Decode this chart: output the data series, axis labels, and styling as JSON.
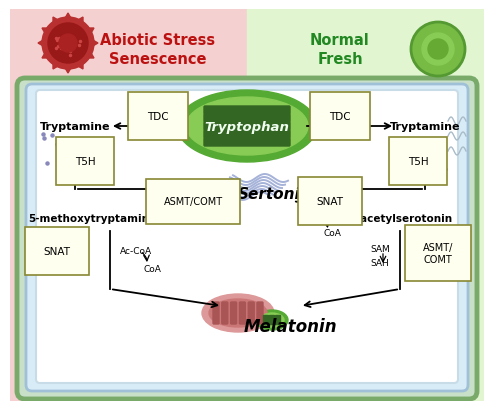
{
  "title_left": "Abiotic Stress\nSenescence",
  "title_right": "Normal\nFresh",
  "title_left_color": "#bb1111",
  "title_right_color": "#228822",
  "bg_left": "#f5d0d0",
  "bg_right": "#e0f5d0",
  "cell_outer_bg": "#c8dfc8",
  "cell_outer_border": "#7aaa6a",
  "cell_inner_bg": "#d8ecf8",
  "cell_inner_border": "#b0c8e0",
  "cell_white_bg": "#f8f8f8",
  "inner_bg": "#ffffff",
  "labels": {
    "tryptophan": "Tryptophan",
    "tryptamine_left": "Tryptamine",
    "tryptamine_right": "Tryptamine",
    "serotonin": "Sertonin",
    "methoxy": "5-methoxytryptamine",
    "nacetyl": "N-acetylserotonin",
    "melatonin": "Melatonin"
  },
  "enzyme_color": "#fffff0",
  "enzyme_edge": "#888833",
  "tryptophan_green1": "#55aa33",
  "tryptophan_green2": "#88cc55",
  "tryptophan_stripe": "#336622",
  "chloro_green1": "#55aa33",
  "chloro_green2": "#88cc55",
  "mito_outer": "#dd9999",
  "mito_inner": "#cc7777",
  "mito_stripe": "#aa5555",
  "serotonin_color": "#8899cc",
  "dot_color": "#8888bb"
}
